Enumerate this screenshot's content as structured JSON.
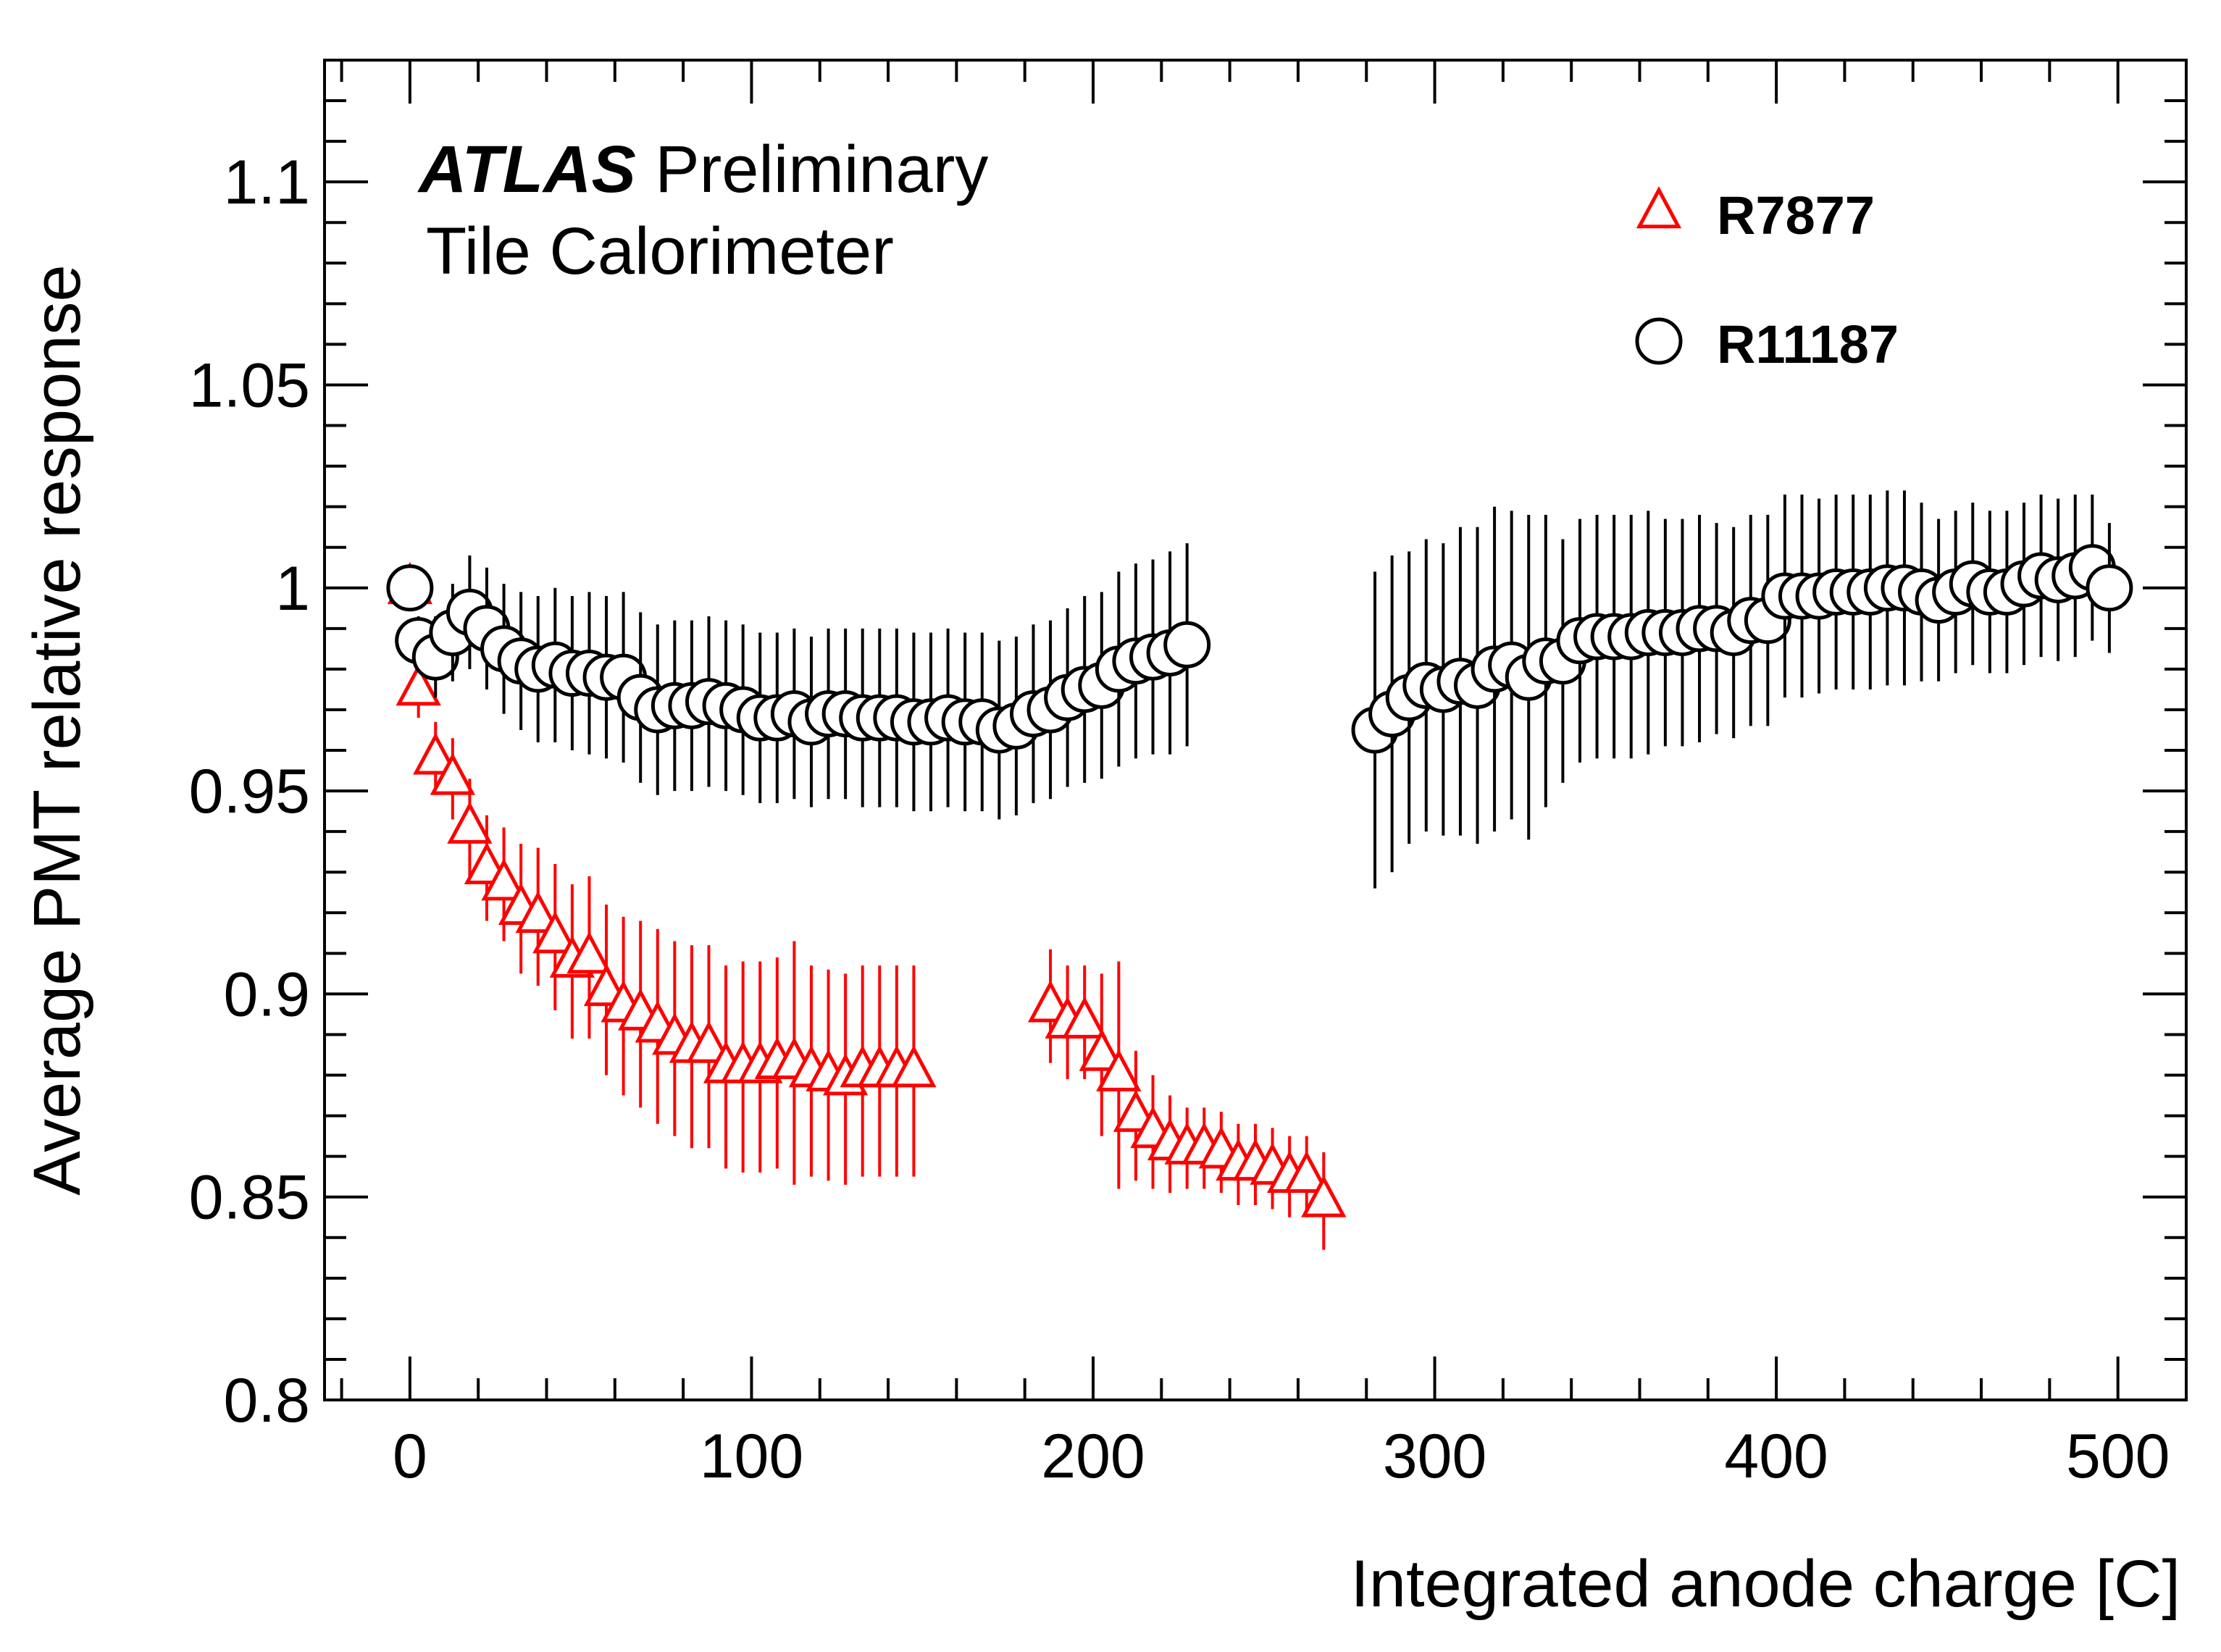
{
  "chart_data": {
    "type": "scatter",
    "title": "ATLAS Preliminary",
    "subtitle": "Tile Calorimeter",
    "header": {
      "bold": "ATLAS",
      "rest": "Preliminary",
      "line2": "Tile Calorimeter"
    },
    "xlabel": "Integrated anode charge [C]",
    "ylabel": "Average PMT relative response",
    "xlim": [
      -25,
      520
    ],
    "ylim": [
      0.8,
      1.13
    ],
    "x_ticks": [
      0,
      100,
      200,
      300,
      400,
      500
    ],
    "x_tick_labels": [
      "0",
      "100",
      "200",
      "300",
      "400",
      "500"
    ],
    "y_ticks": [
      0.8,
      0.85,
      0.9,
      0.95,
      1.0,
      1.05,
      1.1
    ],
    "y_tick_labels": [
      "0.8",
      "0.85",
      "0.9",
      "0.95",
      "1",
      "1.05",
      "1.1"
    ],
    "legend": {
      "position": "top-right",
      "entries": [
        "R7877",
        "R11187"
      ]
    },
    "colors": {
      "R7877": "#ff0000",
      "R11187": "#000000"
    },
    "series": [
      {
        "name": "R7877",
        "marker": "triangle",
        "x": [
          0,
          2.5,
          7.5,
          12.5,
          17.5,
          22.5,
          27.5,
          32.5,
          37.5,
          42.5,
          47.5,
          52.5,
          57.5,
          62.5,
          67.5,
          72.5,
          77.5,
          82.5,
          87.5,
          92.5,
          97.5,
          102.5,
          107.5,
          112.5,
          117.5,
          122.5,
          127.5,
          132.5,
          137.5,
          142.5,
          147.5,
          187.5,
          192.5,
          197.5,
          202.5,
          207.5,
          212.5,
          217.5,
          222.5,
          227.5,
          232.5,
          237.5,
          242.5,
          247.5,
          252.5,
          257.5,
          262.5,
          267.5
        ],
        "y": [
          1.0,
          0.975,
          0.958,
          0.953,
          0.941,
          0.931,
          0.927,
          0.921,
          0.919,
          0.914,
          0.908,
          0.909,
          0.901,
          0.897,
          0.895,
          0.892,
          0.889,
          0.887,
          0.887,
          0.882,
          0.882,
          0.882,
          0.883,
          0.883,
          0.881,
          0.88,
          0.879,
          0.881,
          0.881,
          0.881,
          0.881,
          0.897,
          0.893,
          0.893,
          0.885,
          0.88,
          0.87,
          0.866,
          0.863,
          0.862,
          0.862,
          0.861,
          0.858,
          0.858,
          0.857,
          0.855,
          0.855,
          0.849
        ],
        "err": [
          0.0,
          0.007,
          0.009,
          0.01,
          0.012,
          0.013,
          0.014,
          0.016,
          0.017,
          0.018,
          0.019,
          0.02,
          0.021,
          0.022,
          0.023,
          0.024,
          0.024,
          0.025,
          0.025,
          0.025,
          0.026,
          0.026,
          0.026,
          0.03,
          0.026,
          0.026,
          0.026,
          0.026,
          0.026,
          0.026,
          0.026,
          0.014,
          0.014,
          0.014,
          0.02,
          0.028,
          0.016,
          0.014,
          0.012,
          0.01,
          0.01,
          0.01,
          0.01,
          0.01,
          0.01,
          0.01,
          0.01,
          0.012
        ]
      },
      {
        "name": "R11187",
        "marker": "circle",
        "x": [
          0,
          2.5,
          7.5,
          12.5,
          17.5,
          22.5,
          27.5,
          32.5,
          37.5,
          42.5,
          47.5,
          52.5,
          57.5,
          62.5,
          67.5,
          72.5,
          77.5,
          82.5,
          87.5,
          92.5,
          97.5,
          102.5,
          107.5,
          112.5,
          117.5,
          122.5,
          127.5,
          132.5,
          137.5,
          142.5,
          147.5,
          152.5,
          157.5,
          162.5,
          167.5,
          172.5,
          177.5,
          182.5,
          187.5,
          192.5,
          197.5,
          202.5,
          207.5,
          212.5,
          217.5,
          222.5,
          227.5,
          282.5,
          287.5,
          292.5,
          297.5,
          302.5,
          307.5,
          312.5,
          317.5,
          322.5,
          327.5,
          332.5,
          337.5,
          342.5,
          347.5,
          352.5,
          357.5,
          362.5,
          367.5,
          372.5,
          377.5,
          382.5,
          387.5,
          392.5,
          397.5,
          402.5,
          407.5,
          412.5,
          417.5,
          422.5,
          427.5,
          432.5,
          437.5,
          442.5,
          447.5,
          452.5,
          457.5,
          462.5,
          467.5,
          472.5,
          477.5,
          482.5,
          487.5,
          492.5,
          497.5
        ],
        "y": [
          1.0,
          0.987,
          0.983,
          0.989,
          0.994,
          0.99,
          0.985,
          0.982,
          0.98,
          0.981,
          0.979,
          0.979,
          0.978,
          0.978,
          0.973,
          0.97,
          0.971,
          0.971,
          0.972,
          0.971,
          0.97,
          0.968,
          0.968,
          0.969,
          0.967,
          0.969,
          0.969,
          0.968,
          0.968,
          0.968,
          0.967,
          0.967,
          0.968,
          0.967,
          0.967,
          0.965,
          0.966,
          0.969,
          0.97,
          0.973,
          0.975,
          0.976,
          0.98,
          0.982,
          0.983,
          0.984,
          0.986,
          0.965,
          0.969,
          0.973,
          0.976,
          0.975,
          0.977,
          0.976,
          0.98,
          0.981,
          0.978,
          0.982,
          0.982,
          0.987,
          0.988,
          0.988,
          0.988,
          0.989,
          0.989,
          0.989,
          0.99,
          0.99,
          0.989,
          0.992,
          0.992,
          0.998,
          0.998,
          0.998,
          0.999,
          0.999,
          0.999,
          1.0,
          1.0,
          0.999,
          0.997,
          0.999,
          1.001,
          0.999,
          0.999,
          1.001,
          1.003,
          1.002,
          1.003,
          1.005,
          1.0
        ],
        "err": [
          0.0,
          0.006,
          0.01,
          0.012,
          0.014,
          0.015,
          0.016,
          0.017,
          0.018,
          0.019,
          0.019,
          0.02,
          0.02,
          0.021,
          0.021,
          0.021,
          0.021,
          0.021,
          0.021,
          0.021,
          0.021,
          0.021,
          0.021,
          0.021,
          0.021,
          0.021,
          0.021,
          0.022,
          0.022,
          0.022,
          0.022,
          0.022,
          0.022,
          0.022,
          0.022,
          0.022,
          0.022,
          0.022,
          0.022,
          0.022,
          0.023,
          0.023,
          0.024,
          0.024,
          0.024,
          0.025,
          0.025,
          0.039,
          0.039,
          0.036,
          0.036,
          0.036,
          0.038,
          0.039,
          0.04,
          0.038,
          0.04,
          0.036,
          0.03,
          0.03,
          0.03,
          0.03,
          0.03,
          0.03,
          0.028,
          0.028,
          0.028,
          0.026,
          0.026,
          0.026,
          0.026,
          0.025,
          0.025,
          0.024,
          0.024,
          0.024,
          0.024,
          0.024,
          0.024,
          0.022,
          0.02,
          0.02,
          0.02,
          0.02,
          0.02,
          0.02,
          0.02,
          0.02,
          0.02,
          0.018,
          0.016
        ]
      }
    ]
  }
}
